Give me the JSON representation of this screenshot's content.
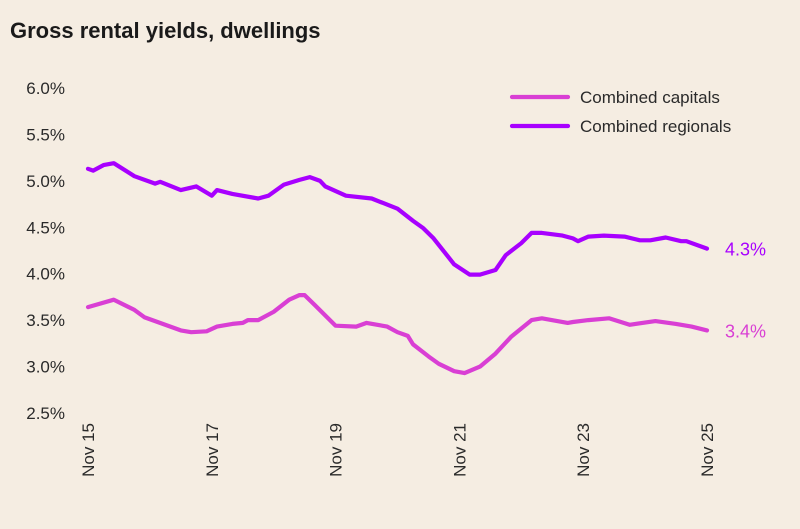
{
  "chart_data": {
    "type": "line",
    "title": "Gross rental yields, dwellings",
    "xlabel": "",
    "ylabel": "",
    "ylim": [
      2.5,
      6.0
    ],
    "y_ticks": [
      "2.5%",
      "3.0%",
      "3.5%",
      "4.0%",
      "4.5%",
      "5.0%",
      "5.5%",
      "6.0%"
    ],
    "y_tick_values": [
      2.5,
      3.0,
      3.5,
      4.0,
      4.5,
      5.0,
      5.5,
      6.0
    ],
    "x_range": [
      "2015-11",
      "2025-11"
    ],
    "x_ticks": [
      "Nov 15",
      "Nov 17",
      "Nov 19",
      "Nov 21",
      "Nov 23",
      "Nov 25"
    ],
    "x_tick_dates": [
      "2015-11",
      "2017-11",
      "2019-11",
      "2021-11",
      "2023-11",
      "2025-11"
    ],
    "grid": false,
    "legend_position": "top-right",
    "series": [
      {
        "name": "Combined capitals",
        "color": "#d93fd4",
        "end_label": "3.4%",
        "points": [
          [
            "2015-11",
            3.64
          ],
          [
            "2016-04",
            3.72
          ],
          [
            "2016-08",
            3.61
          ],
          [
            "2016-10",
            3.53
          ],
          [
            "2017-05",
            3.39
          ],
          [
            "2017-07",
            3.37
          ],
          [
            "2017-10",
            3.38
          ],
          [
            "2017-12",
            3.43
          ],
          [
            "2018-03",
            3.46
          ],
          [
            "2018-05",
            3.47
          ],
          [
            "2018-06",
            3.5
          ],
          [
            "2018-08",
            3.5
          ],
          [
            "2018-11",
            3.59
          ],
          [
            "2019-02",
            3.72
          ],
          [
            "2019-04",
            3.77
          ],
          [
            "2019-05",
            3.77
          ],
          [
            "2019-07",
            3.66
          ],
          [
            "2019-11",
            3.44
          ],
          [
            "2020-03",
            3.43
          ],
          [
            "2020-05",
            3.47
          ],
          [
            "2020-09",
            3.43
          ],
          [
            "2020-11",
            3.37
          ],
          [
            "2021-01",
            3.33
          ],
          [
            "2021-02",
            3.24
          ],
          [
            "2021-05",
            3.11
          ],
          [
            "2021-07",
            3.03
          ],
          [
            "2021-10",
            2.95
          ],
          [
            "2021-12",
            2.93
          ],
          [
            "2022-03",
            3.0
          ],
          [
            "2022-06",
            3.14
          ],
          [
            "2022-09",
            3.32
          ],
          [
            "2023-01",
            3.5
          ],
          [
            "2023-03",
            3.52
          ],
          [
            "2023-08",
            3.47
          ],
          [
            "2023-09",
            3.48
          ],
          [
            "2023-12",
            3.5
          ],
          [
            "2024-04",
            3.52
          ],
          [
            "2024-08",
            3.45
          ],
          [
            "2025-01",
            3.49
          ],
          [
            "2025-05",
            3.46
          ],
          [
            "2025-08",
            3.43
          ],
          [
            "2025-11",
            3.39
          ]
        ]
      },
      {
        "name": "Combined regionals",
        "color": "#a800ff",
        "end_label": "4.3%",
        "points": [
          [
            "2015-11",
            5.13
          ],
          [
            "2015-12",
            5.11
          ],
          [
            "2016-02",
            5.17
          ],
          [
            "2016-04",
            5.19
          ],
          [
            "2016-08",
            5.05
          ],
          [
            "2016-12",
            4.97
          ],
          [
            "2017-01",
            4.99
          ],
          [
            "2017-05",
            4.9
          ],
          [
            "2017-08",
            4.94
          ],
          [
            "2017-11",
            4.84
          ],
          [
            "2017-12",
            4.9
          ],
          [
            "2018-03",
            4.86
          ],
          [
            "2018-08",
            4.81
          ],
          [
            "2018-10",
            4.84
          ],
          [
            "2019-01",
            4.96
          ],
          [
            "2019-04",
            5.01
          ],
          [
            "2019-06",
            5.04
          ],
          [
            "2019-08",
            5.0
          ],
          [
            "2019-09",
            4.94
          ],
          [
            "2020-01",
            4.84
          ],
          [
            "2020-06",
            4.81
          ],
          [
            "2020-11",
            4.7
          ],
          [
            "2021-02",
            4.57
          ],
          [
            "2021-04",
            4.49
          ],
          [
            "2021-06",
            4.38
          ],
          [
            "2021-10",
            4.1
          ],
          [
            "2022-01",
            3.99
          ],
          [
            "2022-03",
            3.99
          ],
          [
            "2022-06",
            4.04
          ],
          [
            "2022-08",
            4.2
          ],
          [
            "2022-11",
            4.33
          ],
          [
            "2023-01",
            4.44
          ],
          [
            "2023-03",
            4.44
          ],
          [
            "2023-07",
            4.41
          ],
          [
            "2023-09",
            4.38
          ],
          [
            "2023-10",
            4.35
          ],
          [
            "2023-12",
            4.4
          ],
          [
            "2024-03",
            4.41
          ],
          [
            "2024-07",
            4.4
          ],
          [
            "2024-10",
            4.36
          ],
          [
            "2024-12",
            4.36
          ],
          [
            "2025-03",
            4.39
          ],
          [
            "2025-06",
            4.35
          ],
          [
            "2025-07",
            4.35
          ],
          [
            "2025-11",
            4.27
          ]
        ]
      }
    ]
  }
}
